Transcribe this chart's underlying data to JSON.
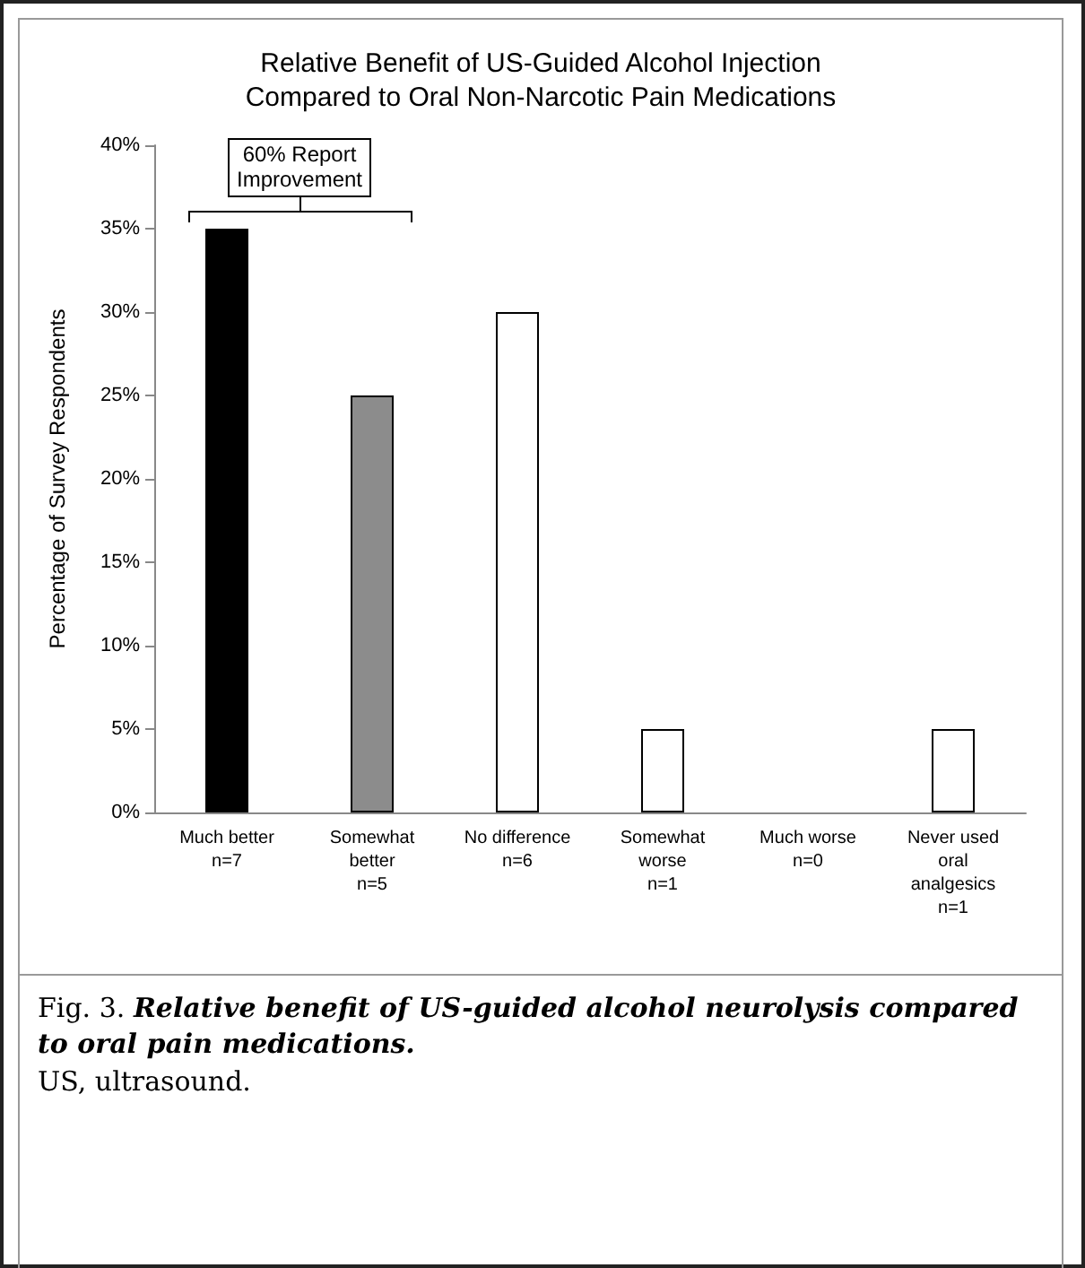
{
  "chart_data": {
    "type": "bar",
    "title": "Relative Benefit of US-Guided Alcohol Injection\nCompared to Oral Non-Narcotic Pain Medications",
    "ylabel": "Percentage of Survey Respondents",
    "categories": [
      "Much better\nn=7",
      "Somewhat\nbetter\nn=5",
      "No difference\nn=6",
      "Somewhat\nworse\nn=1",
      "Much worse\nn=0",
      "Never used\noral\nanalgesics\nn=1"
    ],
    "values": [
      35,
      25,
      30,
      5,
      0,
      5
    ],
    "colors": [
      "#000000",
      "#8c8c8c",
      "#ffffff",
      "#ffffff",
      "#ffffff",
      "#ffffff"
    ],
    "ylim": [
      0,
      40
    ],
    "yticks": [
      {
        "value": 0,
        "label": "0%"
      },
      {
        "value": 5,
        "label": "5%"
      },
      {
        "value": 10,
        "label": "10%"
      },
      {
        "value": 15,
        "label": "15%"
      },
      {
        "value": 20,
        "label": "20%"
      },
      {
        "value": 25,
        "label": "25%"
      },
      {
        "value": 30,
        "label": "30%"
      },
      {
        "value": 35,
        "label": "35%"
      },
      {
        "value": 40,
        "label": "40%"
      }
    ],
    "grid": false,
    "annotations": [
      "60% Report\nImprovement",
      "Fig. 3.",
      "Relative benefit of  US-guided alcohol neurolysis compared to oral pain medications.",
      "US, ultrasound."
    ]
  }
}
